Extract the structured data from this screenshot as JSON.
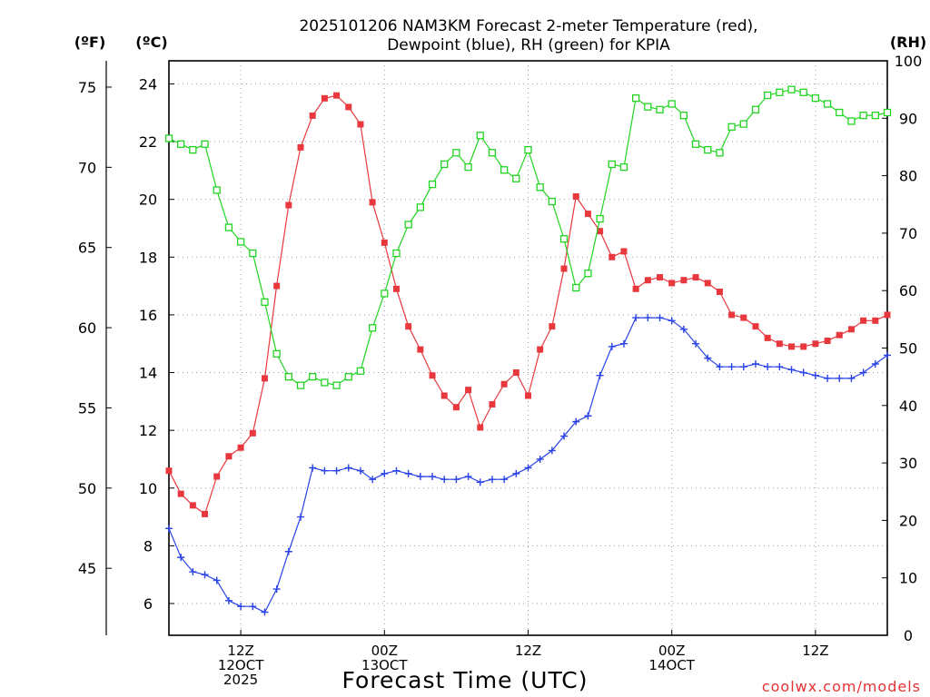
{
  "chart_data": {
    "type": "line",
    "title_line1": "2025101206 NAM3KM Forecast 2-meter Temperature (red),",
    "title_line2": "Dewpoint (blue), RH (green) for KPIA",
    "xlabel": "Forecast Time (UTC)",
    "credit": "coolwx.com/models",
    "units": {
      "fahrenheit": "(ºF)",
      "celsius": "(ºC)",
      "rh": "(RH)"
    },
    "hour_range": [
      0,
      60
    ],
    "ylim_c": [
      4.9,
      24.8
    ],
    "ylim_rh": [
      0,
      100
    ],
    "grid": true,
    "x_ticks": [
      {
        "hour": 6,
        "line1": "12Z",
        "line2": "12OCT",
        "line3": "2025"
      },
      {
        "hour": 18,
        "line1": "00Z",
        "line2": "13OCT",
        "line3": ""
      },
      {
        "hour": 30,
        "line1": "12Z",
        "line2": "",
        "line3": ""
      },
      {
        "hour": 42,
        "line1": "00Z",
        "line2": "14OCT",
        "line3": ""
      },
      {
        "hour": 54,
        "line1": "12Z",
        "line2": "",
        "line3": ""
      }
    ],
    "y_ticks_c": [
      "6",
      "8",
      "10",
      "12",
      "14",
      "16",
      "18",
      "20",
      "22",
      "24"
    ],
    "y_ticks_f": [
      "45",
      "50",
      "55",
      "60",
      "65",
      "70",
      "75"
    ],
    "y_ticks_rh": [
      "0",
      "10",
      "20",
      "30",
      "40",
      "50",
      "60",
      "70",
      "80",
      "90",
      "100"
    ],
    "colors": {
      "temperature": "#e8383d",
      "dewpoint": "#2842e8",
      "rh": "#22d422",
      "grid": "#a0a0a0"
    },
    "series": [
      {
        "key": "temperature",
        "values": [
          10.6,
          9.8,
          9.4,
          9.1,
          10.4,
          11.1,
          11.4,
          11.9,
          13.8,
          17.0,
          19.8,
          21.8,
          22.9,
          23.5,
          23.6,
          23.2,
          22.6,
          19.9,
          18.5,
          16.9,
          15.6,
          14.8,
          13.9,
          13.2,
          12.8,
          13.4,
          12.1,
          12.9,
          13.6,
          14.0,
          13.2,
          14.8,
          15.6,
          17.6,
          20.1,
          19.5,
          18.9,
          18.0,
          18.2,
          16.9,
          17.2,
          17.3,
          17.1,
          17.2,
          17.3,
          17.1,
          16.8,
          16.0,
          15.9,
          15.6,
          15.2,
          15.0,
          14.9,
          14.9,
          15.0,
          15.1,
          15.3,
          15.5,
          15.8,
          15.8,
          16.0
        ]
      },
      {
        "key": "dewpoint",
        "values": [
          8.6,
          7.6,
          7.1,
          7.0,
          6.8,
          6.1,
          5.9,
          5.9,
          5.7,
          6.5,
          7.8,
          9.0,
          10.7,
          10.6,
          10.6,
          10.7,
          10.6,
          10.3,
          10.5,
          10.6,
          10.5,
          10.4,
          10.4,
          10.3,
          10.3,
          10.4,
          10.2,
          10.3,
          10.3,
          10.5,
          10.7,
          11.0,
          11.3,
          11.8,
          12.3,
          12.5,
          13.9,
          14.9,
          15.0,
          15.9,
          15.9,
          15.9,
          15.8,
          15.5,
          15.0,
          14.5,
          14.2,
          14.2,
          14.2,
          14.3,
          14.2,
          14.2,
          14.1,
          14.0,
          13.9,
          13.8,
          13.8,
          13.8,
          14.0,
          14.3,
          14.6
        ]
      },
      {
        "key": "rh",
        "values": [
          86.5,
          85.5,
          84.5,
          85.5,
          77.5,
          71.0,
          68.5,
          66.5,
          58.0,
          49.0,
          45.0,
          43.5,
          45.0,
          44.0,
          43.5,
          45.0,
          46.0,
          53.5,
          59.5,
          66.5,
          71.5,
          74.5,
          78.5,
          82.0,
          84.0,
          81.5,
          87.0,
          84.0,
          81.0,
          79.5,
          84.5,
          78.0,
          75.5,
          69.0,
          60.5,
          63.0,
          72.5,
          82.0,
          81.5,
          93.5,
          92.0,
          91.5,
          92.5,
          90.5,
          85.5,
          84.5,
          84.0,
          88.5,
          89.0,
          91.5,
          94.0,
          94.5,
          95.0,
          94.5,
          93.5,
          92.5,
          91.0,
          89.5,
          90.5,
          90.5,
          91.0
        ]
      }
    ]
  }
}
